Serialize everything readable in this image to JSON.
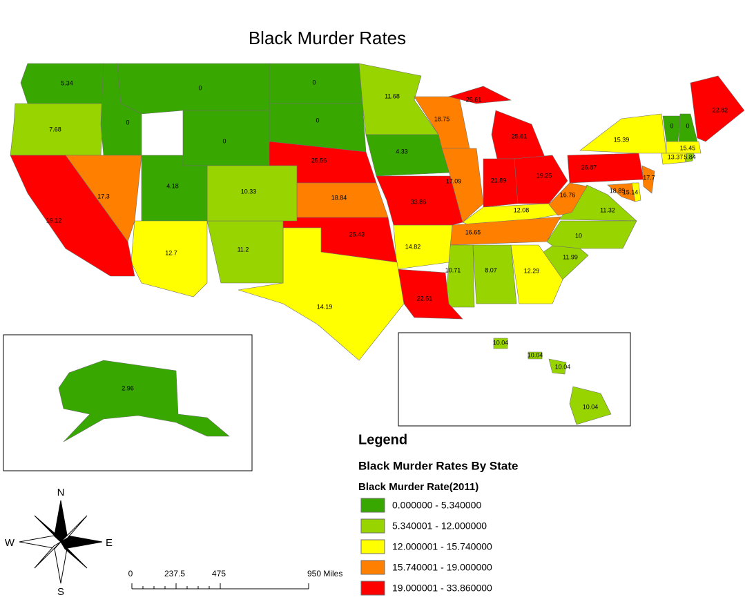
{
  "map": {
    "type": "choropleth",
    "title": "Black Murder Rates",
    "values": [
      5.34,
      7.68,
      0,
      0,
      0,
      0,
      0,
      25.56,
      11.68,
      4.33,
      18.75,
      17.09,
      25.61,
      21.89,
      19.25,
      26.87,
      15.39,
      12.08,
      16.65,
      11.32,
      16.76,
      10,
      11.99,
      12.29,
      8.07,
      10.71,
      22.51,
      14.82,
      33.86,
      18.84,
      25.43,
      14.19,
      11.2,
      10.33,
      4.18,
      12.7,
      17.3,
      19.12,
      22.82,
      0,
      0,
      15.45,
      13.37,
      5.84,
      17.7,
      18.89,
      15.14,
      2.96,
      10.04
    ],
    "legend": {
      "title": "Legend",
      "layer": "Black Murder Rates By State",
      "field": "Black Murder Rate(2011)",
      "classes": [
        {
          "label": "0.000000 - 5.340000",
          "range": [
            0,
            5.34
          ],
          "color": "#38a800"
        },
        {
          "label": "5.340001 - 12.000000",
          "range": [
            5.340001,
            12
          ],
          "color": "#98d400"
        },
        {
          "label": "12.000001 - 15.740000",
          "range": [
            12.000001,
            15.74
          ],
          "color": "#ffff00"
        },
        {
          "label": "15.740001 - 19.000000",
          "range": [
            15.740001,
            19
          ],
          "color": "#ff8000"
        },
        {
          "label": "19.000001 - 33.860000",
          "range": [
            19.000001,
            33.86
          ],
          "color": "#ff0000"
        }
      ]
    },
    "scale_bar": {
      "xlim": [
        0,
        950
      ],
      "ticks": [
        0,
        237.5,
        475,
        {
          "value": 950,
          "label": "950 Miles"
        }
      ]
    },
    "compass": {
      "n": "N",
      "s": "S",
      "e": "E",
      "w": "W"
    }
  }
}
